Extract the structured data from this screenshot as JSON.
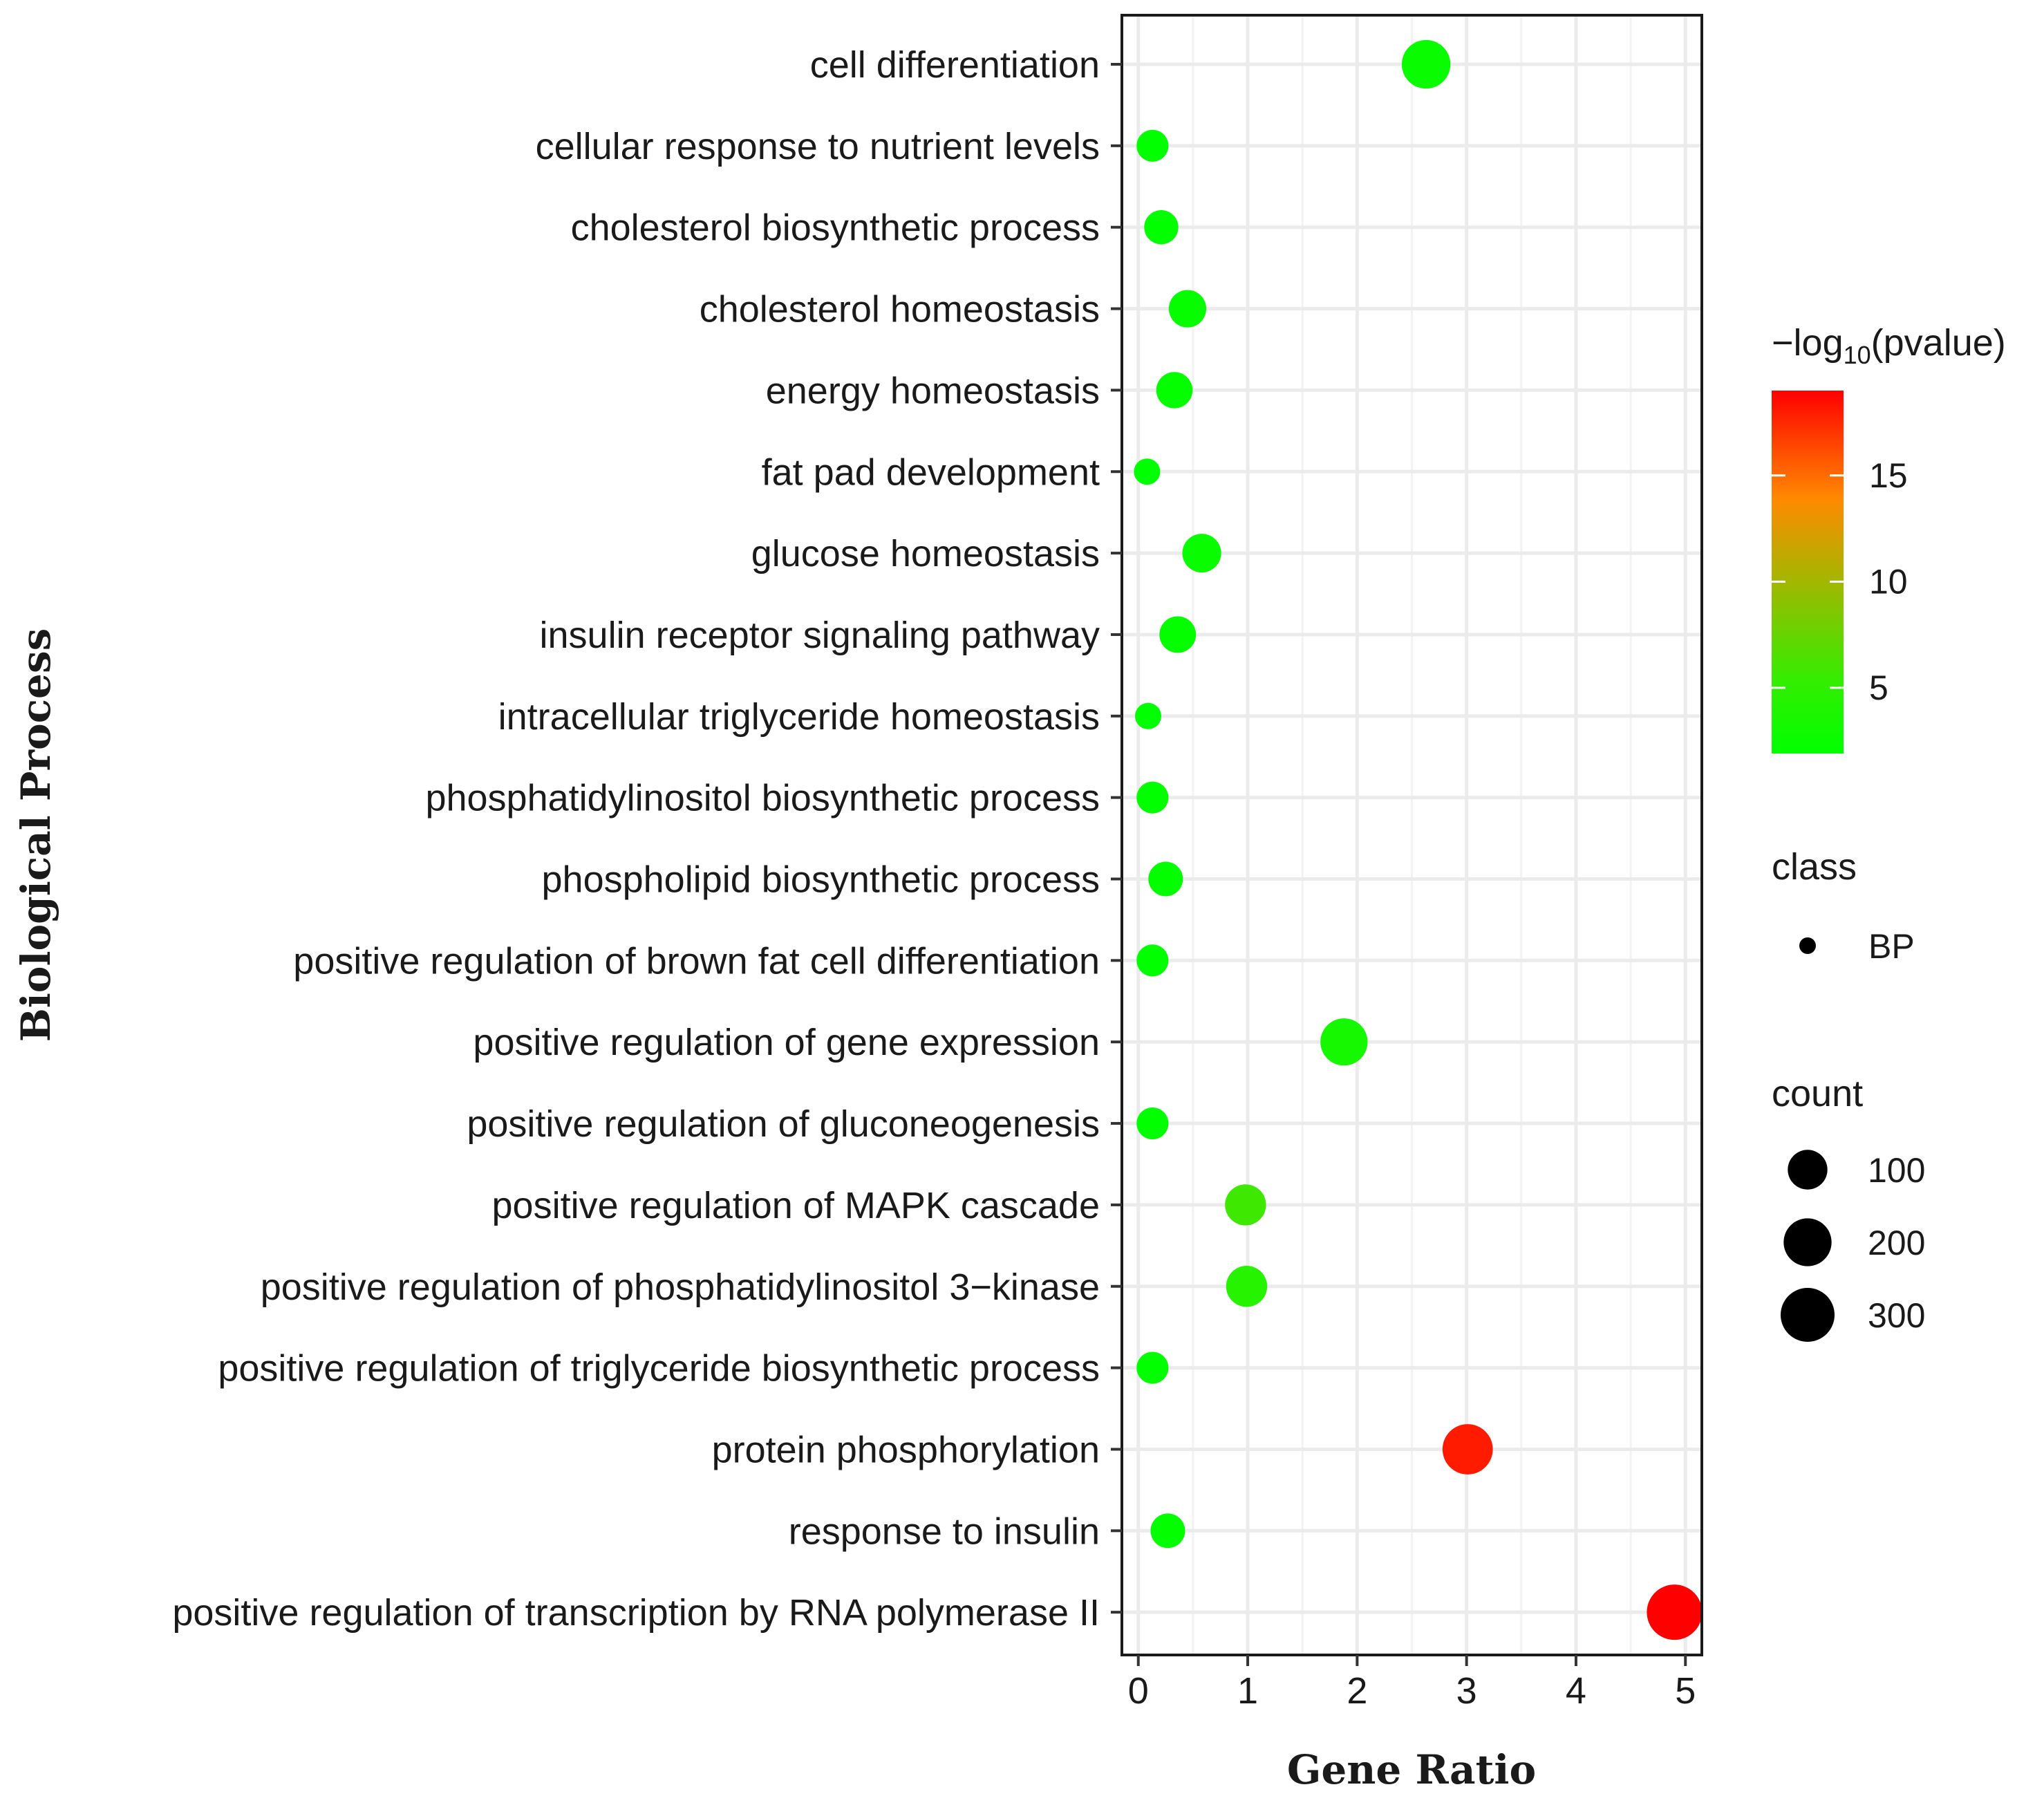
{
  "chart_data": {
    "type": "scatter",
    "xlabel": "Gene Ratio",
    "ylabel": "Biological Process",
    "xlim": [
      -0.15,
      5.15
    ],
    "xticks": [
      0,
      1,
      2,
      3,
      4,
      5
    ],
    "grid": true,
    "categories": [
      "cell differentiation",
      "cellular response to nutrient levels",
      "cholesterol biosynthetic process",
      "cholesterol homeostasis",
      "energy homeostasis",
      "fat pad development",
      "glucose homeostasis",
      "insulin receptor signaling pathway",
      "intracellular triglyceride homeostasis",
      "phosphatidylinositol biosynthetic process",
      "phospholipid biosynthetic process",
      "positive regulation of brown fat cell differentiation",
      "positive regulation of gene expression",
      "positive regulation of gluconeogenesis",
      "positive regulation of MAPK cascade",
      "positive regulation of phosphatidylinositol 3−kinase",
      "positive regulation of triglyceride biosynthetic process",
      "protein phosphorylation",
      "response to insulin",
      "positive regulation of transcription by RNA polymerase II"
    ],
    "series": [
      {
        "name": "BP",
        "gene_ratio": [
          2.63,
          0.13,
          0.21,
          0.45,
          0.33,
          0.08,
          0.58,
          0.36,
          0.09,
          0.13,
          0.25,
          0.13,
          1.88,
          0.13,
          0.98,
          0.99,
          0.13,
          3.01,
          0.27,
          4.9
        ],
        "count": [
          190,
          40,
          50,
          70,
          62,
          30,
          80,
          64,
          30,
          40,
          52,
          40,
          170,
          40,
          100,
          100,
          40,
          215,
          52,
          300
        ],
        "neg_log10_pvalue": [
          2.6,
          2.0,
          2.0,
          2.3,
          2.2,
          1.9,
          2.5,
          2.2,
          1.9,
          2.0,
          2.1,
          2.0,
          3.3,
          2.0,
          5.8,
          4.4,
          2.0,
          18.0,
          2.1,
          19.0
        ]
      }
    ],
    "legends": {
      "color": {
        "title": "−log10(pvalue)",
        "title_main": "−log",
        "title_sub": "10",
        "title_suffix": "(pvalue)",
        "range": [
          1.9,
          19.0
        ],
        "ticks": [
          5,
          10,
          15
        ],
        "low_color": "#00ff00",
        "high_color": "#ff0000"
      },
      "class": {
        "title": "class",
        "entries": [
          "BP"
        ]
      },
      "count": {
        "title": "count",
        "range": [
          30,
          300
        ],
        "breaks": [
          100,
          200,
          300
        ]
      }
    }
  }
}
